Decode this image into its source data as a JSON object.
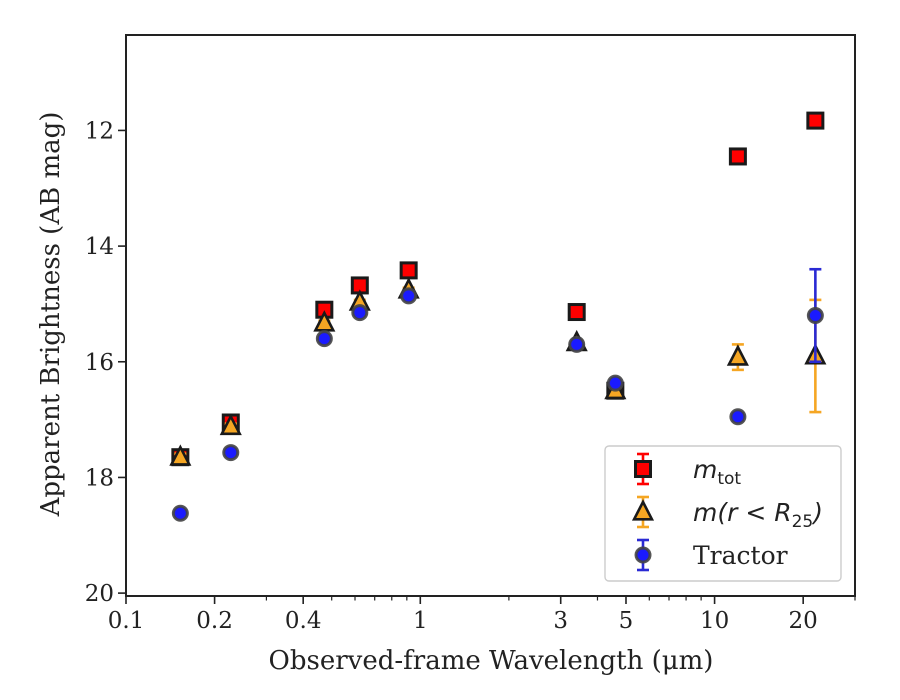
{
  "chart_data": {
    "type": "scatter",
    "xlabel": "Observed-frame Wavelength (μm)",
    "ylabel": "Apparent Brightness (AB mag)",
    "xscale": "log",
    "xlim": [
      0.1,
      30
    ],
    "ylim": [
      20.05,
      10.35
    ],
    "y_inverted": true,
    "grid": false,
    "legend_position": "lower-right",
    "x_ticks": [
      {
        "value": 0.1,
        "label": "0.1"
      },
      {
        "value": 0.2,
        "label": "0.2"
      },
      {
        "value": 0.4,
        "label": "0.4"
      },
      {
        "value": 1,
        "label": "1"
      },
      {
        "value": 3,
        "label": "3"
      },
      {
        "value": 5,
        "label": "5"
      },
      {
        "value": 10,
        "label": "10"
      },
      {
        "value": 20,
        "label": "20"
      }
    ],
    "x_minor_ticks": [
      0.3,
      0.5,
      0.6,
      0.7,
      0.8,
      0.9,
      2,
      4,
      6,
      7,
      8,
      9,
      30
    ],
    "y_ticks": [
      {
        "value": 12,
        "label": "12"
      },
      {
        "value": 14,
        "label": "14"
      },
      {
        "value": 16,
        "label": "16"
      },
      {
        "value": 18,
        "label": "18"
      },
      {
        "value": 20,
        "label": "20"
      }
    ],
    "series": [
      {
        "name": "m_tot",
        "legend_main": "m",
        "legend_sub": "tot",
        "marker": "square",
        "color": "#ff0000",
        "edge_color": "#1a1a1a",
        "errcolor": "#ff0000",
        "points": [
          {
            "x": 0.153,
            "y": 17.65,
            "err": 0.12
          },
          {
            "x": 0.227,
            "y": 17.05,
            "err": 0.08
          },
          {
            "x": 0.472,
            "y": 15.1,
            "err": 0.04
          },
          {
            "x": 0.623,
            "y": 14.68,
            "err": 0.04
          },
          {
            "x": 0.913,
            "y": 14.42,
            "err": 0.04
          },
          {
            "x": 3.4,
            "y": 15.14,
            "err": 0.03
          },
          {
            "x": 4.6,
            "y": 16.5,
            "err": 0.03
          },
          {
            "x": 12.0,
            "y": 12.45,
            "err": 0.03
          },
          {
            "x": 22.0,
            "y": 11.83,
            "err": 0.03
          }
        ]
      },
      {
        "name": "m(r < R25)",
        "legend_main": "m(r < R",
        "legend_sub": "25",
        "legend_end": ")",
        "marker": "triangle",
        "color": "#f5a623",
        "edge_color": "#1a1a1a",
        "errcolor": "#f5a623",
        "points": [
          {
            "x": 0.153,
            "y": 17.65,
            "err": 0.06
          },
          {
            "x": 0.227,
            "y": 17.12,
            "err": 0.05
          },
          {
            "x": 0.472,
            "y": 15.33,
            "err": 0.04
          },
          {
            "x": 0.623,
            "y": 14.97,
            "err": 0.04
          },
          {
            "x": 0.913,
            "y": 14.76,
            "err": 0.04
          },
          {
            "x": 3.4,
            "y": 15.67,
            "err": 0.04
          },
          {
            "x": 4.6,
            "y": 16.5,
            "err": 0.06
          },
          {
            "x": 12.0,
            "y": 15.92,
            "err": 0.22
          },
          {
            "x": 22.0,
            "y": 15.9,
            "err": 0.97
          }
        ]
      },
      {
        "name": "Tractor",
        "legend_main": "Tractor",
        "marker": "circle",
        "color": "#1a1aff",
        "edge_color": "#444444",
        "errcolor": "#2a2ad4",
        "points": [
          {
            "x": 0.153,
            "y": 18.62,
            "err": 0.05
          },
          {
            "x": 0.227,
            "y": 17.57,
            "err": 0.05
          },
          {
            "x": 0.472,
            "y": 15.6,
            "err": 0.04
          },
          {
            "x": 0.623,
            "y": 15.15,
            "err": 0.04
          },
          {
            "x": 0.913,
            "y": 14.86,
            "err": 0.04
          },
          {
            "x": 3.4,
            "y": 15.7,
            "err": 0.04
          },
          {
            "x": 4.6,
            "y": 16.37,
            "err": 0.05
          },
          {
            "x": 12.0,
            "y": 16.95,
            "err": 0.06
          },
          {
            "x": 22.0,
            "y": 15.2,
            "err": 0.8
          }
        ]
      }
    ]
  }
}
